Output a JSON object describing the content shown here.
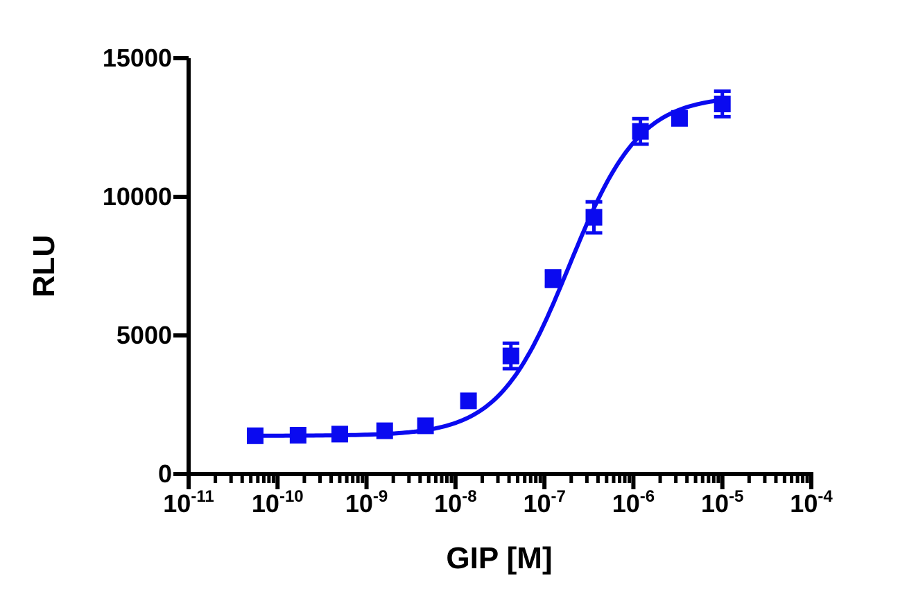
{
  "chart_data": {
    "type": "scatter",
    "xlabel": "GIP [M]",
    "ylabel": "RLU",
    "x_scale": "log10",
    "xlim": [
      1e-11,
      0.0001
    ],
    "ylim": [
      0,
      15000
    ],
    "y_ticks": [
      0,
      5000,
      10000,
      15000
    ],
    "x_tick_labels": [
      {
        "base": "10",
        "exp": "-11"
      },
      {
        "base": "10",
        "exp": "-10"
      },
      {
        "base": "10",
        "exp": "-9"
      },
      {
        "base": "10",
        "exp": "-8"
      },
      {
        "base": "10",
        "exp": "-7"
      },
      {
        "base": "10",
        "exp": "-6"
      },
      {
        "base": "10",
        "exp": "-5"
      },
      {
        "base": "10",
        "exp": "-4"
      }
    ],
    "grid": false,
    "color": "#0a0af0",
    "series": [
      {
        "marker": "square",
        "points": [
          {
            "x": 5.6e-11,
            "y": 1380,
            "err": 0
          },
          {
            "x": 1.7e-10,
            "y": 1400,
            "err": 0
          },
          {
            "x": 5e-10,
            "y": 1440,
            "err": 0
          },
          {
            "x": 1.6e-09,
            "y": 1560,
            "err": 0
          },
          {
            "x": 4.6e-09,
            "y": 1740,
            "err": 0
          },
          {
            "x": 1.4e-08,
            "y": 2640,
            "err": 0
          },
          {
            "x": 4.2e-08,
            "y": 4260,
            "err": 460
          },
          {
            "x": 1.25e-07,
            "y": 7050,
            "err": 280
          },
          {
            "x": 3.6e-07,
            "y": 9260,
            "err": 560
          },
          {
            "x": 1.2e-06,
            "y": 12360,
            "err": 460
          },
          {
            "x": 3.3e-06,
            "y": 12830,
            "err": 0
          },
          {
            "x": 1e-05,
            "y": 13350,
            "err": 460
          }
        ],
        "fit": {
          "model": "sigmoidal dose-response",
          "bottom": 1380,
          "top": 13650,
          "ec50": 1.9e-07,
          "hill": 1.1
        }
      }
    ]
  }
}
